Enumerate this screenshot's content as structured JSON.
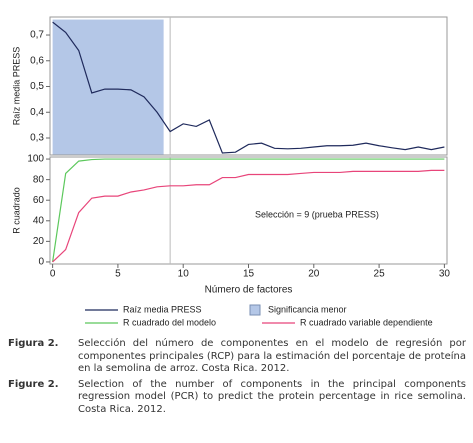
{
  "chart_data": [
    {
      "type": "line",
      "y_label": "Raíz media PRESS",
      "x": [
        0,
        1,
        2,
        3,
        4,
        5,
        6,
        7,
        8,
        9,
        10,
        11,
        12,
        13,
        14,
        15,
        16,
        17,
        18,
        19,
        20,
        21,
        22,
        23,
        24,
        25,
        26,
        27,
        28,
        29,
        30
      ],
      "series": [
        {
          "name": "Raíz media PRESS",
          "color": "#1f2a5c",
          "values": [
            0.75,
            0.71,
            0.64,
            0.475,
            0.49,
            0.49,
            0.487,
            0.46,
            0.4,
            0.325,
            0.355,
            0.345,
            0.37,
            0.242,
            0.245,
            0.275,
            0.28,
            0.26,
            0.258,
            0.26,
            0.265,
            0.27,
            0.27,
            0.272,
            0.28,
            0.27,
            0.262,
            0.255,
            0.265,
            0.255,
            0.265
          ]
        }
      ],
      "shade": {
        "name": "Significancia menor",
        "color": "#b4c7e7",
        "xlim": [
          0,
          8.5
        ],
        "ylim": [
          0.234,
          0.76
        ]
      },
      "vline": 9,
      "xlim": [
        -0.2,
        30.2
      ],
      "ylim": [
        0.234,
        0.77
      ],
      "yticks": [
        {
          "value": 0.3,
          "label": "0,3"
        },
        {
          "value": 0.4,
          "label": "0,4"
        },
        {
          "value": 0.5,
          "label": "0,5"
        },
        {
          "value": 0.6,
          "label": "0,6"
        },
        {
          "value": 0.7,
          "label": "0,7"
        }
      ]
    },
    {
      "type": "line",
      "y_label": "R cuadrado",
      "x_label": "Número de factores",
      "annotation": "Selección = 9 (prueba PRESS)",
      "x": [
        0,
        1,
        2,
        3,
        4,
        5,
        6,
        7,
        8,
        9,
        10,
        11,
        12,
        13,
        14,
        15,
        16,
        17,
        18,
        19,
        20,
        21,
        22,
        23,
        24,
        25,
        26,
        27,
        28,
        29,
        30
      ],
      "series": [
        {
          "name": "R cuadrado del modelo",
          "color": "#5cc85c",
          "values": [
            0,
            86,
            98,
            99.5,
            100,
            100,
            100,
            100,
            100,
            100,
            100,
            100,
            100,
            100,
            100,
            100,
            100,
            100,
            100,
            100,
            100,
            100,
            100,
            100,
            100,
            100,
            100,
            100,
            100,
            100,
            100
          ]
        },
        {
          "name": "R cuadrado variable dependiente",
          "color": "#e8457a",
          "values": [
            0,
            12,
            48,
            62,
            64,
            64,
            68,
            70,
            73,
            74,
            74,
            75,
            75,
            82,
            82,
            85,
            85,
            85,
            85,
            86,
            87,
            87,
            87,
            88,
            88,
            88,
            88,
            88,
            88,
            89,
            89
          ]
        }
      ],
      "vline": 9,
      "xlim": [
        -0.2,
        30.2
      ],
      "ylim": [
        -2,
        102
      ],
      "xticks": [
        0,
        5,
        10,
        15,
        20,
        25,
        30
      ],
      "yticks": [
        0,
        20,
        40,
        60,
        80,
        100
      ]
    }
  ],
  "caption": [
    {
      "label": "Figura 2.",
      "text": "Selección del número de componentes en el modelo de regresión por componentes principales (RCP) para la estimación del porcentaje de proteína en la semolina de arroz. Costa Rica. 2012."
    },
    {
      "label": "Figure 2.",
      "text": "Selection of the number of components in the principal components regression model (PCR) to predict the protein percentage in rice semolina. Costa Rica. 2012."
    }
  ]
}
